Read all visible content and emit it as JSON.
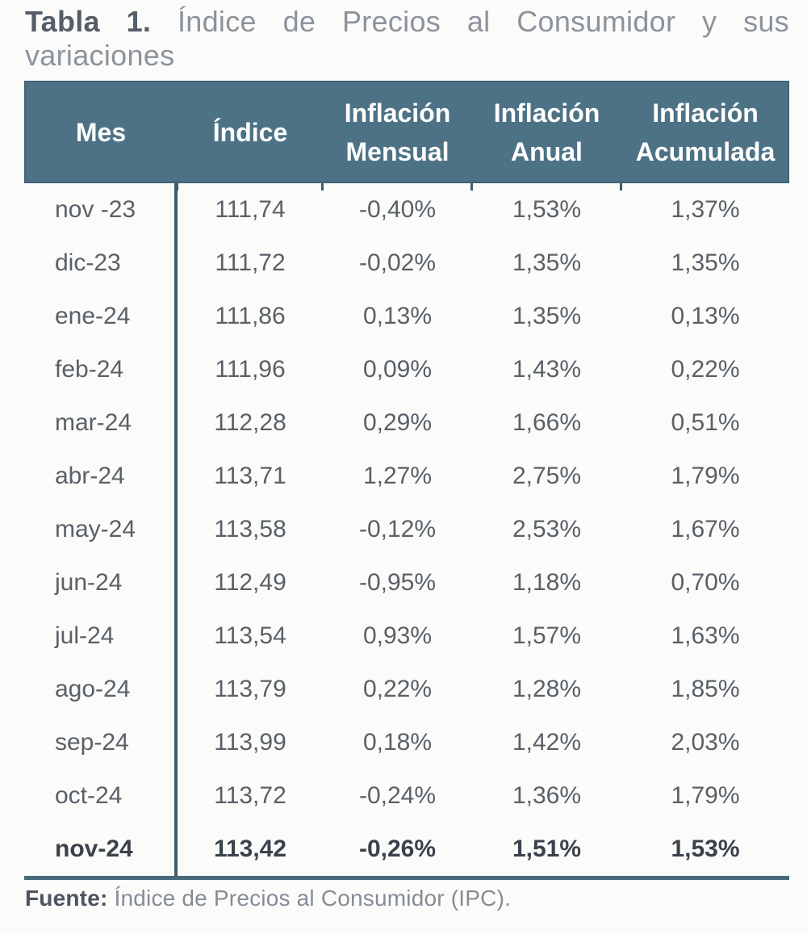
{
  "title": {
    "label": "Tabla 1.",
    "text": "Índice de Precios al Consumidor y sus variaciones"
  },
  "table": {
    "header": {
      "mes": "Mes",
      "indice": "Índice",
      "mensual_line1": "Inflación",
      "mensual_line2": "Mensual",
      "anual_line1": "Inflación",
      "anual_line2": "Anual",
      "acumulada_line1": "Inflación",
      "acumulada_line2": "Acumulada"
    },
    "rows": [
      {
        "mes": "nov -23",
        "indice": "111,74",
        "mensual": "-0,40%",
        "anual": "1,53%",
        "acumulada": "1,37%",
        "bold": false
      },
      {
        "mes": "dic-23",
        "indice": "111,72",
        "mensual": "-0,02%",
        "anual": "1,35%",
        "acumulada": "1,35%",
        "bold": false
      },
      {
        "mes": "ene-24",
        "indice": "111,86",
        "mensual": "0,13%",
        "anual": "1,35%",
        "acumulada": "0,13%",
        "bold": false
      },
      {
        "mes": "feb-24",
        "indice": "111,96",
        "mensual": "0,09%",
        "anual": "1,43%",
        "acumulada": "0,22%",
        "bold": false
      },
      {
        "mes": "mar-24",
        "indice": "112,28",
        "mensual": "0,29%",
        "anual": "1,66%",
        "acumulada": "0,51%",
        "bold": false
      },
      {
        "mes": "abr-24",
        "indice": "113,71",
        "mensual": "1,27%",
        "anual": "2,75%",
        "acumulada": "1,79%",
        "bold": false
      },
      {
        "mes": "may-24",
        "indice": "113,58",
        "mensual": "-0,12%",
        "anual": "2,53%",
        "acumulada": "1,67%",
        "bold": false
      },
      {
        "mes": "jun-24",
        "indice": "112,49",
        "mensual": "-0,95%",
        "anual": "1,18%",
        "acumulada": "0,70%",
        "bold": false
      },
      {
        "mes": "jul-24",
        "indice": "113,54",
        "mensual": "0,93%",
        "anual": "1,57%",
        "acumulada": "1,63%",
        "bold": false
      },
      {
        "mes": "ago-24",
        "indice": "113,79",
        "mensual": "0,22%",
        "anual": "1,28%",
        "acumulada": "1,85%",
        "bold": false
      },
      {
        "mes": "sep-24",
        "indice": "113,99",
        "mensual": "0,18%",
        "anual": "1,42%",
        "acumulada": "2,03%",
        "bold": false
      },
      {
        "mes": "oct-24",
        "indice": "113,72",
        "mensual": "-0,24%",
        "anual": "1,36%",
        "acumulada": "1,79%",
        "bold": false
      },
      {
        "mes": "nov-24",
        "indice": "113,42",
        "mensual": "-0,26%",
        "anual": "1,51%",
        "acumulada": "1,53%",
        "bold": true
      }
    ]
  },
  "footer": {
    "label": "Fuente:",
    "text": "Índice de Precios al Consumidor (IPC)."
  },
  "colors": {
    "header_bg": "#4e7285",
    "header_text": "#ffffff",
    "column_divider": "#3f5a6b",
    "bottom_rule": "#44697b",
    "body_text": "#5a6068",
    "bold_row_text": "#3b424a",
    "title_label": "#545e69",
    "title_text": "#8d939c",
    "source_label": "#4c545e",
    "source_text": "#868c96",
    "page_background": "#fbfbfa"
  }
}
